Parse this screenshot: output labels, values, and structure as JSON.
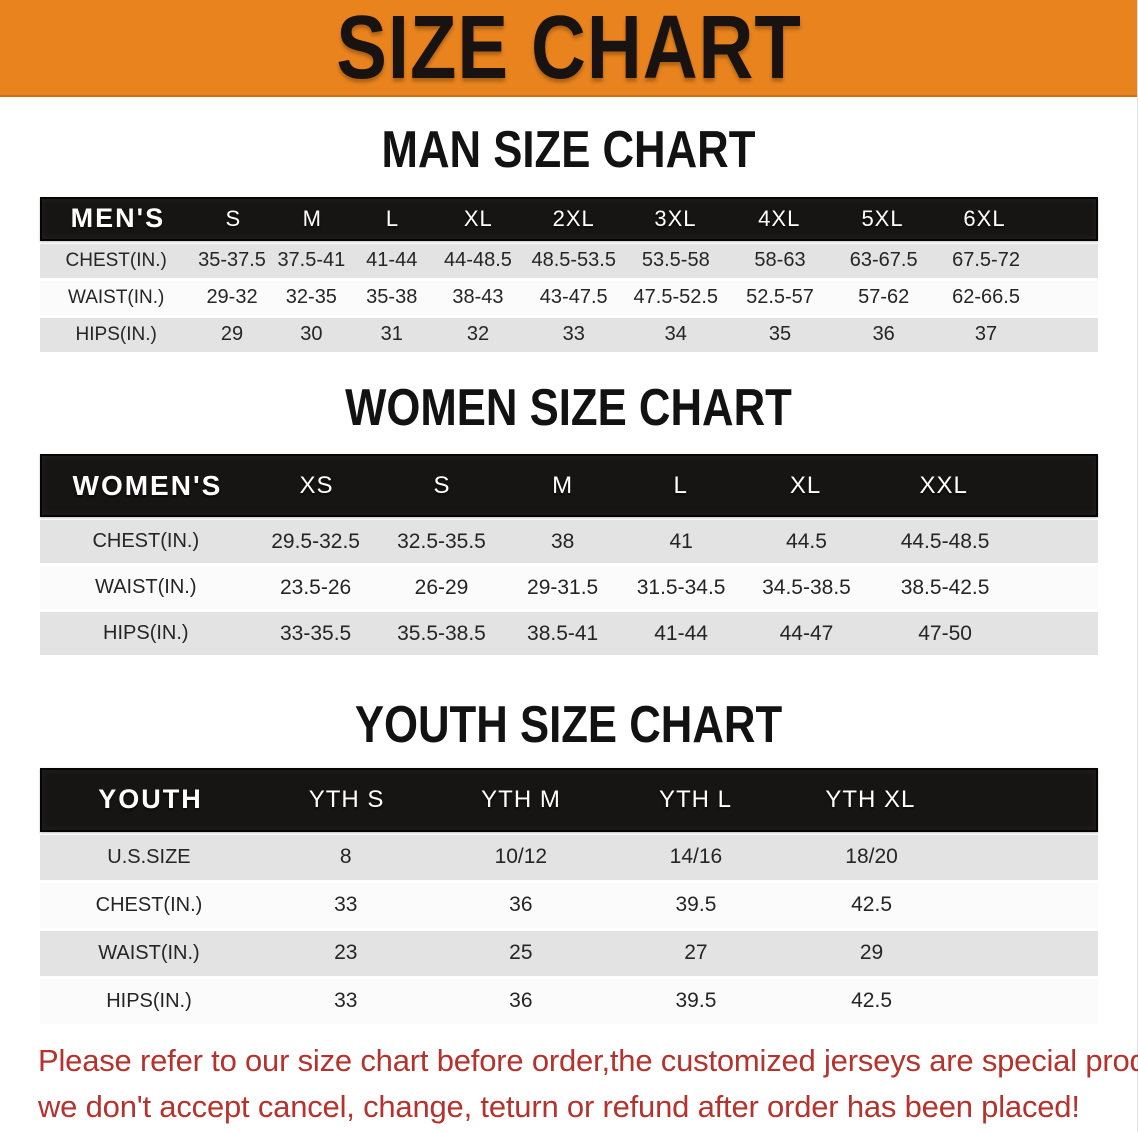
{
  "banner": {
    "title": "SIZE CHART"
  },
  "colors": {
    "banner_bg": "#E8831E",
    "table_header_bg": "#171514",
    "table_header_text": "#FFFFFF",
    "row_gray": "#E3E3E3",
    "row_white": "#FBFBFB",
    "heading_text": "#121212",
    "cell_text": "#252525",
    "disclaimer_text": "#B5322D"
  },
  "sections": [
    {
      "id": "men",
      "heading": "MAN SIZE CHART",
      "table": {
        "header": [
          "MEN'S",
          "S",
          "M",
          "L",
          "XL",
          "2XL",
          "3XL",
          "4XL",
          "5XL",
          "6XL"
        ],
        "rows": [
          {
            "label": "CHEST(IN.)",
            "values": [
              "35-37.5",
              "37.5-41",
              "41-44",
              "44-48.5",
              "48.5-53.5",
              "53.5-58",
              "58-63",
              "63-67.5",
              "67.5-72"
            ]
          },
          {
            "label": "WAIST(IN.)",
            "values": [
              "29-32",
              "32-35",
              "35-38",
              "38-43",
              "43-47.5",
              "47.5-52.5",
              "52.5-57",
              "57-62",
              "62-66.5"
            ]
          },
          {
            "label": "HIPS(IN.)",
            "values": [
              "29",
              "30",
              "31",
              "32",
              "33",
              "34",
              "35",
              "36",
              "37"
            ]
          }
        ]
      }
    },
    {
      "id": "women",
      "heading": "WOMEN SIZE CHART",
      "table": {
        "header": [
          "WOMEN'S",
          "XS",
          "S",
          "M",
          "L",
          "XL",
          "XXL"
        ],
        "rows": [
          {
            "label": "CHEST(IN.)",
            "values": [
              "29.5-32.5",
              "32.5-35.5",
              "38",
              "41",
              "44.5",
              "44.5-48.5"
            ]
          },
          {
            "label": "WAIST(IN.)",
            "values": [
              "23.5-26",
              "26-29",
              "29-31.5",
              "31.5-34.5",
              "34.5-38.5",
              "38.5-42.5"
            ]
          },
          {
            "label": "HIPS(IN.)",
            "values": [
              "33-35.5",
              "35.5-38.5",
              "38.5-41",
              "41-44",
              "44-47",
              "47-50"
            ]
          }
        ]
      }
    },
    {
      "id": "youth",
      "heading": "YOUTH SIZE CHART",
      "table": {
        "header": [
          "YOUTH",
          "YTH S",
          "YTH M",
          "YTH L",
          "YTH XL"
        ],
        "rows": [
          {
            "label": "U.S.SIZE",
            "values": [
              "8",
              "10/12",
              "14/16",
              "18/20"
            ]
          },
          {
            "label": "CHEST(IN.)",
            "values": [
              "33",
              "36",
              "39.5",
              "42.5"
            ]
          },
          {
            "label": "WAIST(IN.)",
            "values": [
              "23",
              "25",
              "27",
              "29"
            ]
          },
          {
            "label": "HIPS(IN.)",
            "values": [
              "33",
              "36",
              "39.5",
              "42.5"
            ]
          }
        ]
      }
    }
  ],
  "disclaimer": {
    "line1": "Please refer to our size chart before order,the customized jerseys are special products,",
    "line2": "we don't accept cancel, change, teturn or refund after order has been placed!"
  }
}
